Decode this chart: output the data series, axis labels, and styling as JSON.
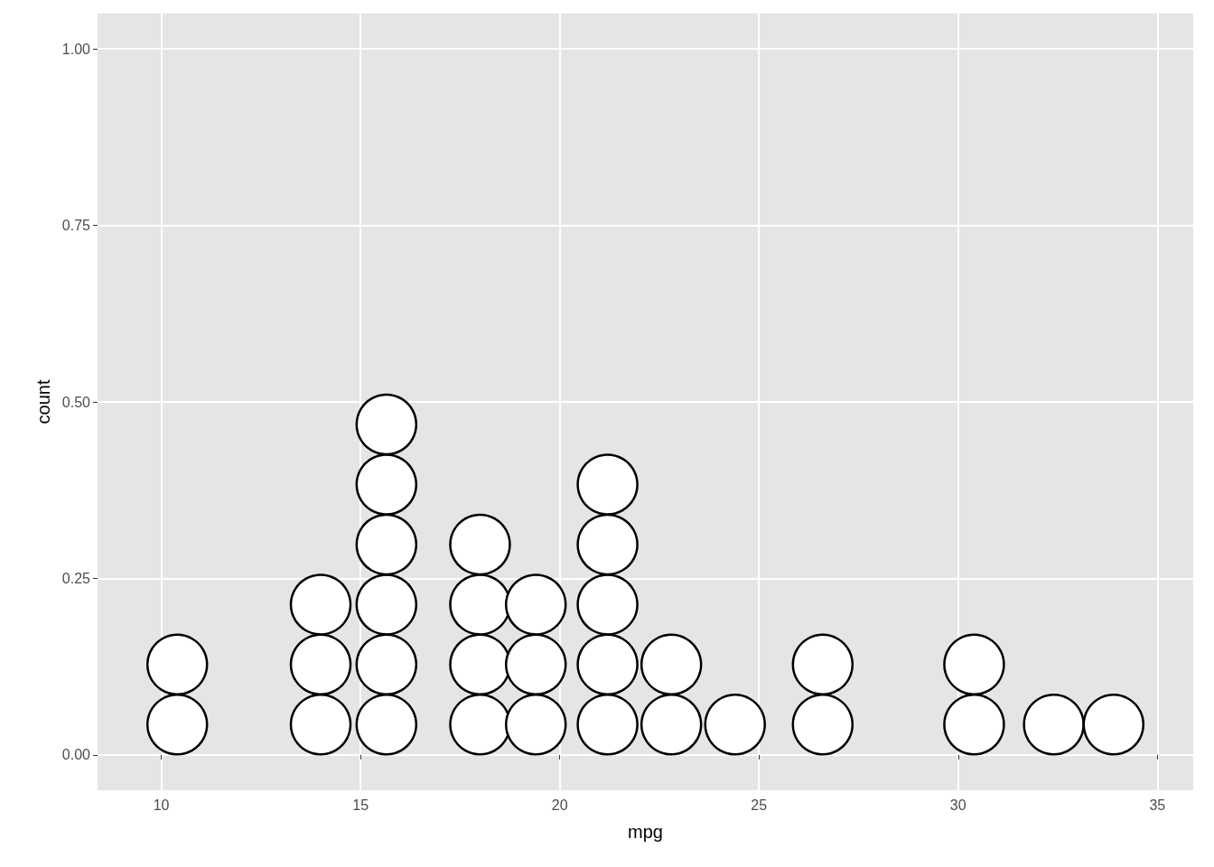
{
  "chart_data": {
    "type": "scatter",
    "xlabel": "mpg",
    "ylabel": "count",
    "marker": "circle",
    "grid": true,
    "xlim": [
      8.4,
      35.9
    ],
    "xticks": [
      10,
      15,
      20,
      25,
      30,
      35
    ],
    "ylim": [
      -0.05,
      1.05
    ],
    "yticks": [
      {
        "value": 0,
        "label": "0.00"
      },
      {
        "value": 0.25,
        "label": "0.25"
      },
      {
        "value": 0.5,
        "label": "0.50"
      },
      {
        "value": 0.75,
        "label": "0.75"
      },
      {
        "value": 1,
        "label": "1.00"
      }
    ],
    "series": [
      {
        "color": "#ffffff",
        "x": [
          10.4,
          10.4,
          14.0,
          14.0,
          14.0,
          15.65,
          15.65,
          15.65,
          15.65,
          15.65,
          15.65,
          18.0,
          18.0,
          18.0,
          18.0,
          19.4,
          19.4,
          19.4,
          21.2,
          21.2,
          21.2,
          21.2,
          21.2,
          22.8,
          22.8,
          24.4,
          26.6,
          26.6,
          30.4,
          30.4,
          32.4,
          33.9
        ],
        "values": [
          0.043,
          0.128,
          0.043,
          0.128,
          0.213,
          0.043,
          0.128,
          0.213,
          0.298,
          0.383,
          0.468,
          0.043,
          0.128,
          0.213,
          0.298,
          0.043,
          0.128,
          0.213,
          0.043,
          0.128,
          0.213,
          0.298,
          0.383,
          0.043,
          0.128,
          0.043,
          0.043,
          0.128,
          0.043,
          0.128,
          0.043,
          0.043
        ]
      }
    ]
  }
}
